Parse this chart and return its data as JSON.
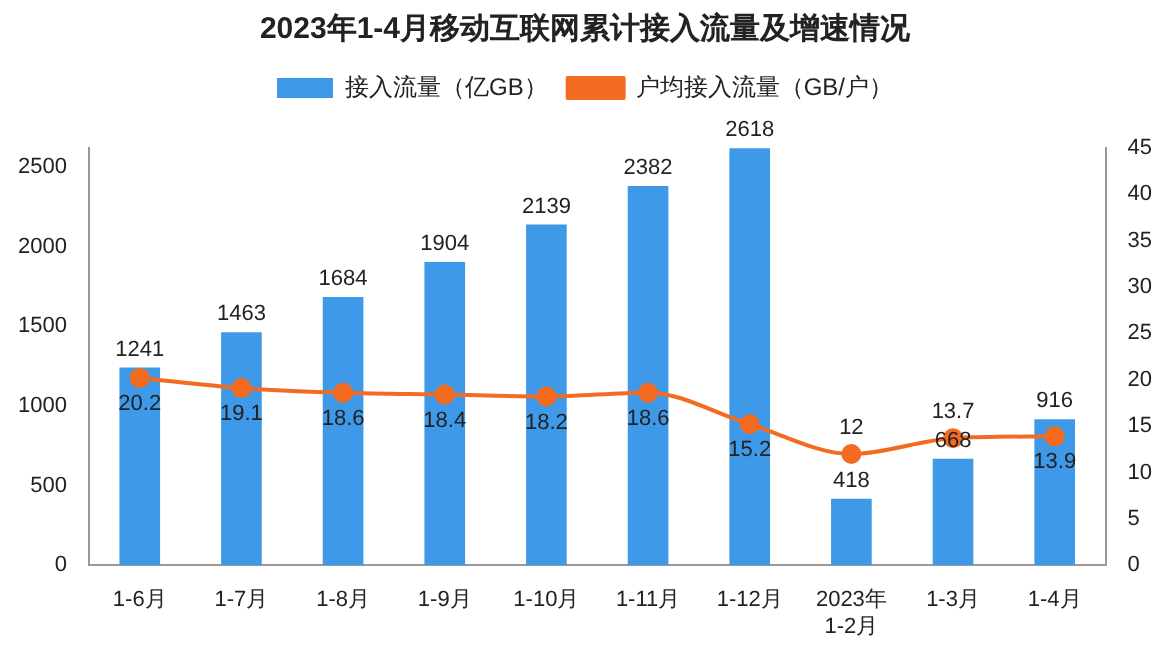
{
  "chart_data": {
    "type": "bar",
    "title": "2023年1-4月移动互联网累计接入流量及增速情况",
    "categories": [
      "1-6月",
      "1-7月",
      "1-8月",
      "1-9月",
      "1-10月",
      "1-11月",
      "1-12月",
      "2023年\n1-2月",
      "1-3月",
      "1-4月"
    ],
    "series": [
      {
        "name": "接入流量（亿GB）",
        "color": "#3e9ae8",
        "values": [
          1241,
          1463,
          1684,
          1904,
          2139,
          2382,
          2618,
          418,
          668,
          916
        ]
      },
      {
        "name": "户均接入流量（GB/户）",
        "type": "line",
        "axis": "y2",
        "color": "#f26b21",
        "values": [
          20.2,
          19.1,
          18.6,
          18.4,
          18.2,
          18.6,
          15.2,
          12,
          13.7,
          13.9
        ]
      }
    ],
    "ylim": [
      0,
      2620
    ],
    "yticks": [
      0,
      500,
      1000,
      1500,
      2000,
      2500
    ],
    "y2lim": [
      0,
      45
    ],
    "y2ticks": [
      0,
      5,
      10,
      15,
      20,
      25,
      30,
      35,
      40,
      45
    ],
    "data_labels": true,
    "legend": "top",
    "grid": false,
    "marker": "circle"
  }
}
